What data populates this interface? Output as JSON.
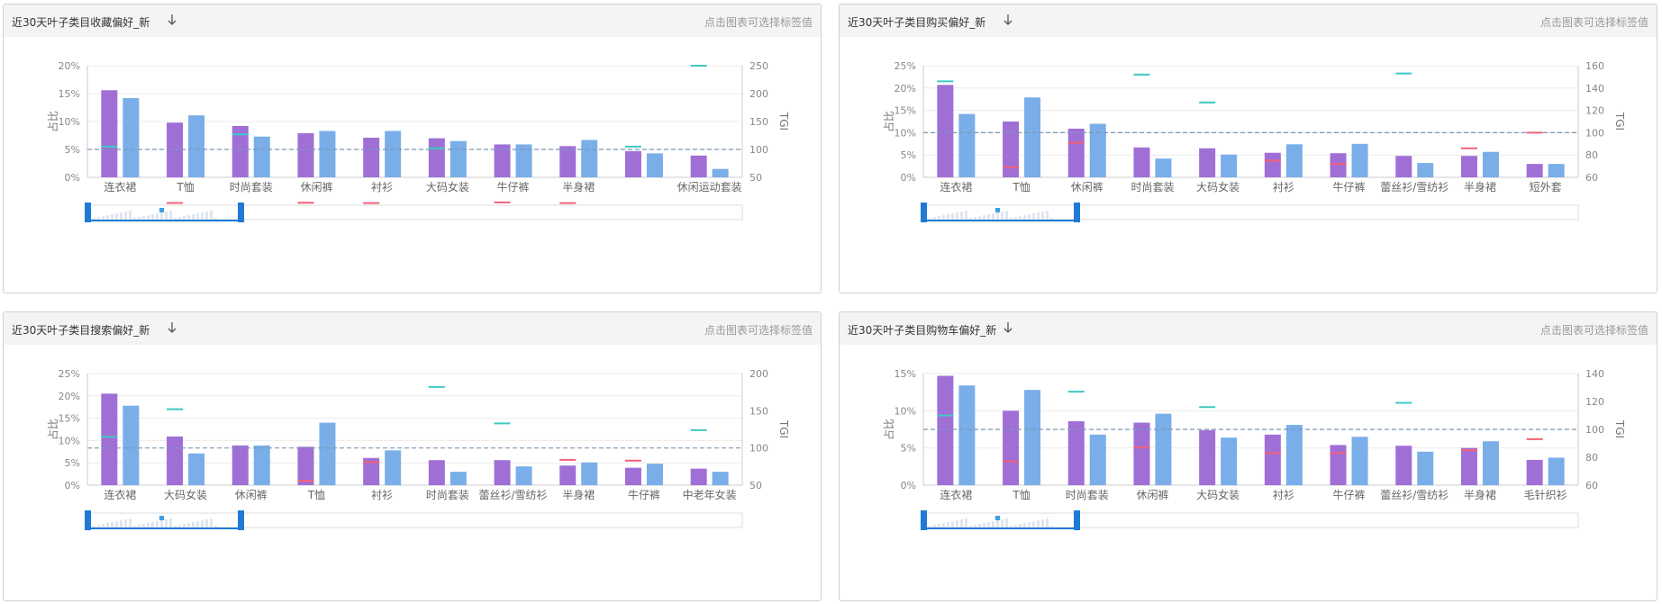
{
  "panels": [
    {
      "title": "近30天叶子类目收藏偏好_新",
      "hint": "点击图表可选择标签值",
      "sort_icon": "arrow-down-icon",
      "chart_data": {
        "type": "bar",
        "ylabel": "占比",
        "y2label": "TGI",
        "ylim": [
          0,
          20
        ],
        "yticks": [
          "0%",
          "5%",
          "10%",
          "15%",
          "20%"
        ],
        "y2lim": [
          50,
          250
        ],
        "y2ticks": [
          "50",
          "100",
          "150",
          "200",
          "250"
        ],
        "categories": [
          "连衣裙",
          "T恤",
          "时尚套装",
          "休闲裤",
          "衬衫",
          "大码女装",
          "牛仔裤",
          "半身裙",
          "",
          "休闲运动套装"
        ],
        "series": [
          {
            "color": "#a06fd6",
            "values": [
              15.6,
              9.8,
              9.2,
              7.9,
              7.1,
              7.0,
              5.9,
              5.6,
              4.7,
              3.9
            ]
          },
          {
            "color": "#7aaee8",
            "values": [
              14.2,
              11.1,
              7.3,
              8.3,
              8.3,
              6.5,
              5.9,
              6.7,
              4.3,
              1.5
            ]
          }
        ],
        "markers_red": [
          null,
          4.0,
          null,
          4.5,
          3.8,
          null,
          5.0,
          3.9,
          null,
          null
        ],
        "markers_teal": [
          105,
          null,
          127,
          null,
          null,
          102,
          null,
          null,
          105,
          250
        ],
        "reference_tgi": 100
      }
    },
    {
      "title": "近30天叶子类目购买偏好_新",
      "hint": "点击图表可选择标签值",
      "sort_icon": "arrow-down-icon",
      "chart_data": {
        "type": "bar",
        "ylabel": "占比",
        "y2label": "TGI",
        "ylim": [
          0,
          25
        ],
        "yticks": [
          "0%",
          "5%",
          "10%",
          "15%",
          "20%",
          "25%"
        ],
        "y2lim": [
          60,
          160
        ],
        "y2ticks": [
          "60",
          "80",
          "100",
          "120",
          "140",
          "160"
        ],
        "categories": [
          "连衣裙",
          "T恤",
          "休闲裤",
          "时尚套装",
          "大码女装",
          "衬衫",
          "牛仔裤",
          "蕾丝衫/雪纺衫",
          "半身裙",
          "短外套"
        ],
        "series": [
          {
            "color": "#a06fd6",
            "values": [
              20.7,
              12.5,
              10.9,
              6.7,
              6.5,
              5.5,
              5.4,
              4.8,
              4.8,
              3.0
            ]
          },
          {
            "color": "#7aaee8",
            "values": [
              14.2,
              17.9,
              12.0,
              4.2,
              5.1,
              7.4,
              7.5,
              3.2,
              5.7,
              3.0
            ]
          }
        ],
        "markers_red": [
          null,
          69,
          91,
          null,
          null,
          75,
          72,
          null,
          86,
          100
        ],
        "markers_teal": [
          146,
          null,
          null,
          152,
          127,
          null,
          null,
          153,
          null,
          null
        ],
        "reference_tgi": 100
      }
    },
    {
      "title": "近30天叶子类目搜索偏好_新",
      "hint": "点击图表可选择标签值",
      "sort_icon": "arrow-down-icon",
      "chart_data": {
        "type": "bar",
        "ylabel": "占比",
        "y2label": "TGI",
        "ylim": [
          0,
          25
        ],
        "yticks": [
          "0%",
          "5%",
          "10%",
          "15%",
          "20%",
          "25%"
        ],
        "y2lim": [
          50,
          200
        ],
        "y2ticks": [
          "50",
          "100",
          "150",
          "200"
        ],
        "categories": [
          "连衣裙",
          "大码女装",
          "休闲裤",
          "T恤",
          "衬衫",
          "时尚套装",
          "蕾丝衫/雪纺衫",
          "半身裙",
          "牛仔裤",
          "中老年女装"
        ],
        "series": [
          {
            "color": "#a06fd6",
            "values": [
              20.5,
              10.9,
              8.9,
              8.6,
              6.1,
              5.6,
              5.6,
              4.4,
              3.9,
              3.7
            ]
          },
          {
            "color": "#7aaee8",
            "values": [
              17.8,
              7.1,
              8.9,
              14.0,
              7.8,
              3.0,
              4.2,
              5.1,
              4.8,
              3.0
            ]
          }
        ],
        "markers_red": [
          null,
          null,
          null,
          56,
          81,
          null,
          null,
          84,
          83,
          null
        ],
        "markers_teal": [
          115,
          152,
          null,
          null,
          null,
          182,
          133,
          null,
          null,
          124
        ],
        "reference_tgi": 100
      }
    },
    {
      "title": "近30天叶子类目购物车偏好_新",
      "hint": "点击图表可选择标签值",
      "sort_icon": "arrow-down-icon",
      "chart_data": {
        "type": "bar",
        "ylabel": "占比",
        "y2label": "TGI",
        "ylim": [
          0,
          15
        ],
        "yticks": [
          "0%",
          "5%",
          "10%",
          "15%"
        ],
        "y2lim": [
          60,
          140
        ],
        "y2ticks": [
          "60",
          "80",
          "100",
          "120",
          "140"
        ],
        "categories": [
          "连衣裙",
          "T恤",
          "时尚套装",
          "休闲裤",
          "大码女装",
          "衬衫",
          "牛仔裤",
          "蕾丝衫/雪纺衫",
          "半身裙",
          "毛针织衫"
        ],
        "series": [
          {
            "color": "#a06fd6",
            "values": [
              14.7,
              10.0,
              8.6,
              8.4,
              7.4,
              6.8,
              5.4,
              5.3,
              5.0,
              3.4
            ]
          },
          {
            "color": "#7aaee8",
            "values": [
              13.4,
              12.8,
              6.8,
              9.6,
              6.4,
              8.1,
              6.5,
              4.5,
              5.9,
              3.7
            ]
          }
        ],
        "markers_red": [
          null,
          77,
          null,
          87,
          null,
          83,
          83,
          null,
          85,
          93
        ],
        "markers_teal": [
          110,
          null,
          127,
          null,
          116,
          null,
          null,
          119,
          null,
          null
        ],
        "reference_tgi": 100
      }
    }
  ]
}
